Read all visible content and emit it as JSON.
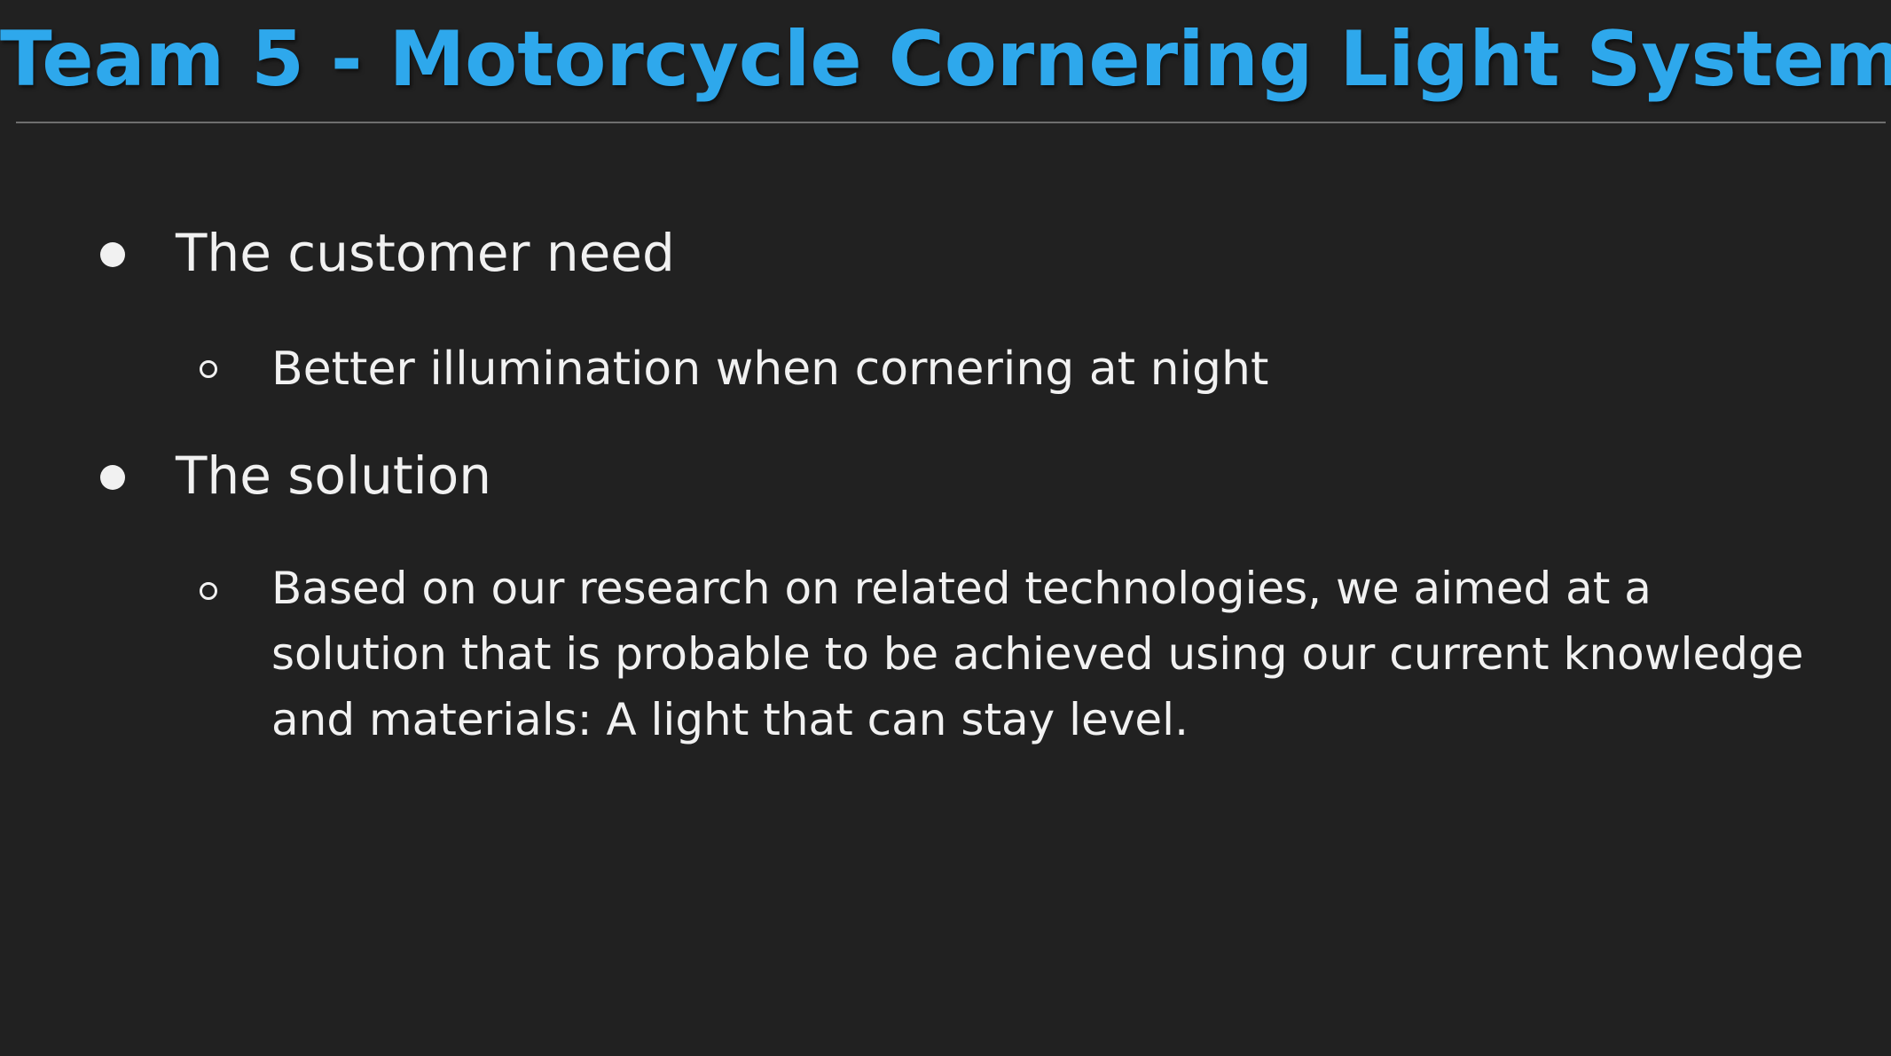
{
  "slide": {
    "title": "Team 5 - Motorcycle Cornering Light System",
    "bullets": [
      {
        "text": "The customer need",
        "sub": [
          "Better illumination when cornering at night"
        ]
      },
      {
        "text": "The solution",
        "sub_lines": [
          "Based on our research on related technologies, we aimed at a",
          "solution that is probable to be achieved using our current knowledge",
          "and materials: A light that can stay level."
        ]
      }
    ]
  },
  "colors": {
    "background": "#212121",
    "title": "#2ea8ec",
    "text": "#f1f1f1",
    "rule": "#6e6e6e"
  },
  "icons": {
    "level1_bullet": "filled-circle",
    "level2_bullet": "hollow-circle"
  }
}
